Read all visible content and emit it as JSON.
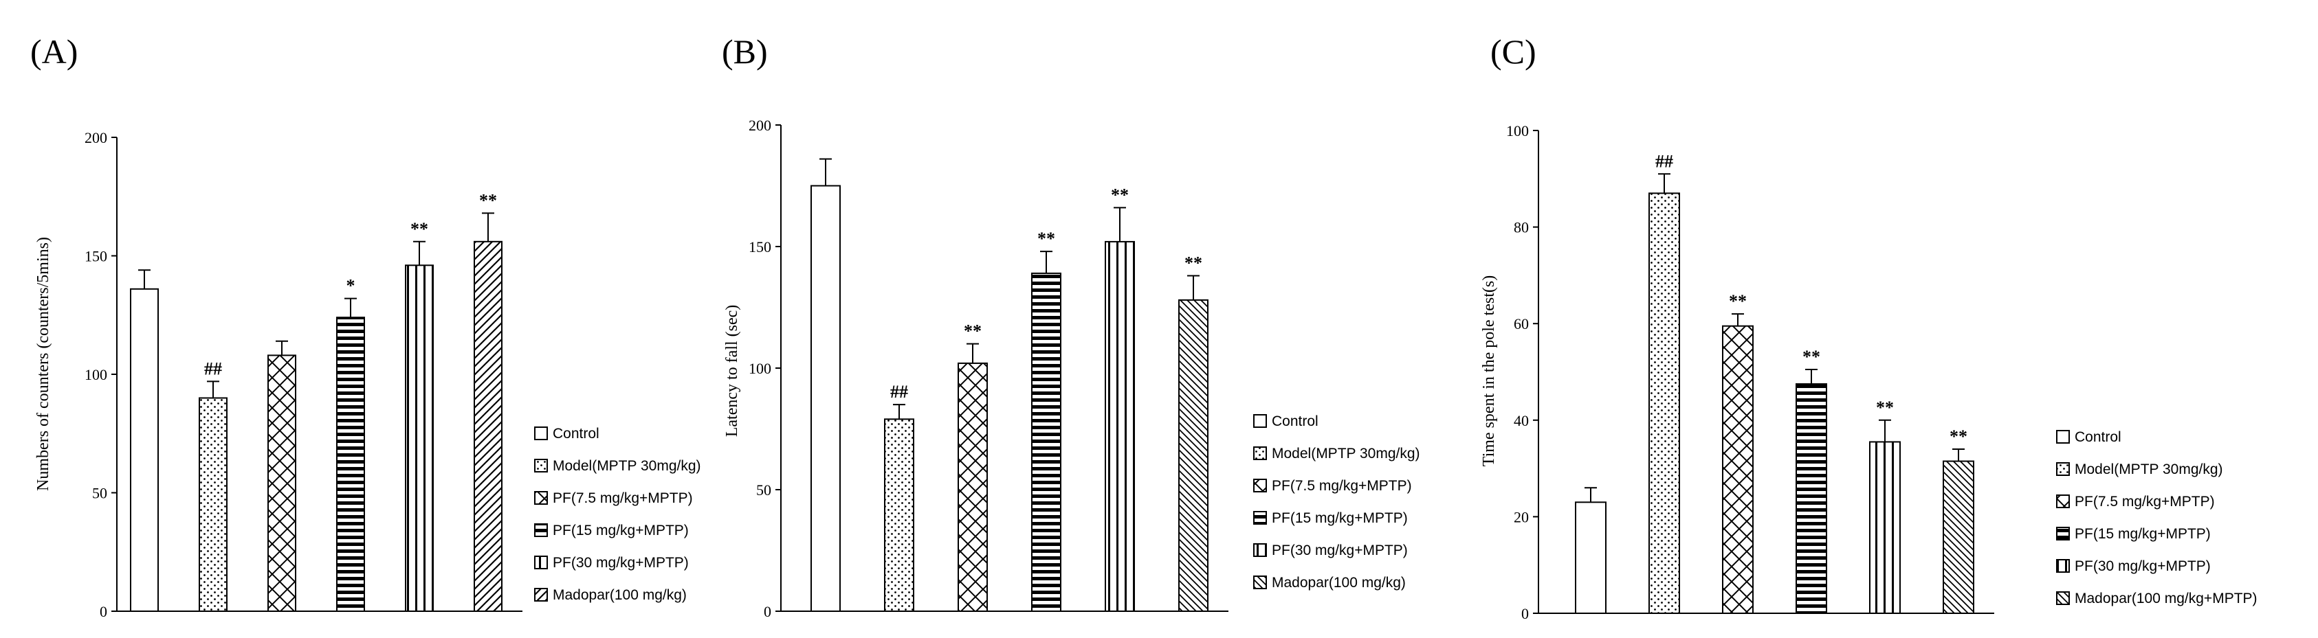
{
  "panels": [
    {
      "label": "(A)",
      "ylabel": "Numbers of counters (counters/5mins)",
      "legend": [
        "Control",
        "Model(MPTP 30mg/kg)",
        "PF(7.5 mg/kg+MPTP)",
        "PF(15 mg/kg+MPTP)",
        "PF(30 mg/kg+MPTP)",
        "Madopar(100 mg/kg)"
      ]
    },
    {
      "label": "(B)",
      "ylabel": "Latency to fall (sec)",
      "legend": [
        "Control",
        "Model(MPTP 30mg/kg)",
        "PF(7.5 mg/kg+MPTP)",
        "PF(15 mg/kg+MPTP)",
        "PF(30 mg/kg+MPTP)",
        "Madopar(100 mg/kg)"
      ]
    },
    {
      "label": "(C)",
      "ylabel": "Time spent in the  pole test(s)",
      "legend": [
        "Control",
        "Model(MPTP 30mg/kg)",
        "PF(7.5 mg/kg+MPTP)",
        "PF(15 mg/kg+MPTP)",
        "PF(30 mg/kg+MPTP)",
        "Madopar(100 mg/kg+MPTP)"
      ]
    }
  ],
  "chart_data": [
    {
      "type": "bar",
      "title": "(A)",
      "xlabel": "",
      "ylabel": "Numbers of counters (counters/5mins)",
      "ylim": [
        0,
        200
      ],
      "yticks": [
        0,
        50,
        100,
        150,
        200
      ],
      "categories": [
        "Control",
        "Model(MPTP 30mg/kg)",
        "PF(7.5 mg/kg+MPTP)",
        "PF(15 mg/kg+MPTP)",
        "PF(30 mg/kg+MPTP)",
        "Madopar(100 mg/kg)"
      ],
      "values": [
        136,
        90,
        108,
        124,
        146,
        156
      ],
      "errors": [
        8,
        7,
        6,
        8,
        10,
        12
      ],
      "significance": [
        "",
        "##",
        "",
        "*",
        "**",
        "**"
      ],
      "patterns": [
        "plain",
        "dots",
        "crosshatch",
        "hstripe",
        "vstripe",
        "diag"
      ],
      "legend_position": "right",
      "grid": false
    },
    {
      "type": "bar",
      "title": "(B)",
      "xlabel": "",
      "ylabel": "Latency to fall (sec)",
      "ylim": [
        0,
        200
      ],
      "yticks": [
        0,
        50,
        100,
        150,
        200
      ],
      "categories": [
        "Control",
        "Model(MPTP 30mg/kg)",
        "PF(7.5 mg/kg+MPTP)",
        "PF(15 mg/kg+MPTP)",
        "PF(30 mg/kg+MPTP)",
        "Madopar(100 mg/kg)"
      ],
      "values": [
        175,
        79,
        102,
        139,
        152,
        128
      ],
      "errors": [
        11,
        6,
        8,
        9,
        14,
        10
      ],
      "significance": [
        "",
        "##",
        "**",
        "**",
        "**",
        "**"
      ],
      "patterns": [
        "plain",
        "dots",
        "crosshatch",
        "hstripe",
        "vstripe",
        "diag2"
      ],
      "legend_position": "right",
      "grid": false
    },
    {
      "type": "bar",
      "title": "(C)",
      "xlabel": "",
      "ylabel": "Time spent in the  pole test(s)",
      "ylim": [
        0,
        100
      ],
      "yticks": [
        0,
        20,
        40,
        60,
        80,
        100
      ],
      "categories": [
        "Control",
        "Model(MPTP 30mg/kg)",
        "PF(7.5 mg/kg+MPTP)",
        "PF(15 mg/kg+MPTP)",
        "PF(30 mg/kg+MPTP)",
        "Madopar(100 mg/kg+MPTP)"
      ],
      "values": [
        23,
        87,
        59.5,
        47.5,
        35.5,
        31.5
      ],
      "errors": [
        3,
        4,
        2.5,
        3,
        4.5,
        2.5
      ],
      "significance": [
        "",
        "##",
        "**",
        "**",
        "**",
        "**"
      ],
      "patterns": [
        "plain",
        "dots",
        "crosshatch",
        "hstripe",
        "vstripe",
        "diag2"
      ],
      "legend_position": "right",
      "grid": false
    }
  ]
}
